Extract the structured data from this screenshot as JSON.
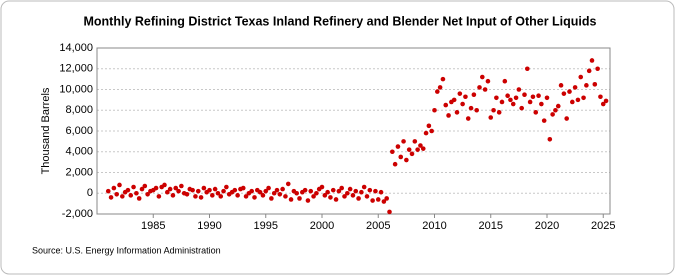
{
  "chart_data": {
    "type": "scatter",
    "title": "Monthly Refining District Texas Inland Refinery and Blender Net Input of Other Liquids",
    "y_label": "Thousand Barrels",
    "source": "Source: U.S. Energy Information Administration",
    "color": "#cc0000",
    "grid": true,
    "xlim": [
      1980,
      2025.6
    ],
    "xticks": [
      1985,
      1990,
      1995,
      2000,
      2005,
      2010,
      2015,
      2020,
      2025
    ],
    "ylim": [
      -2000,
      14000
    ],
    "yticks": [
      {
        "value": -2000,
        "label": "-2,000"
      },
      0,
      {
        "value": 2000,
        "label": "2,000"
      },
      {
        "value": 4000,
        "label": "4,000"
      },
      {
        "value": 6000,
        "label": "6,000"
      },
      {
        "value": 8000,
        "label": "8,000"
      },
      {
        "value": 10000,
        "label": "10,000"
      },
      {
        "value": 12000,
        "label": "12,000"
      },
      {
        "value": 14000,
        "label": "14,000"
      }
    ],
    "x": [
      1981,
      1981.25,
      1981.5,
      1981.75,
      1982,
      1982.25,
      1982.5,
      1982.75,
      1983,
      1983.25,
      1983.5,
      1983.75,
      1984,
      1984.25,
      1984.5,
      1984.75,
      1985,
      1985.25,
      1985.5,
      1985.75,
      1986,
      1986.25,
      1986.5,
      1986.75,
      1987,
      1987.25,
      1987.5,
      1987.75,
      1988,
      1988.25,
      1988.5,
      1988.75,
      1989,
      1989.25,
      1989.5,
      1989.75,
      1990,
      1990.25,
      1990.5,
      1990.75,
      1991,
      1991.25,
      1991.5,
      1991.75,
      1992,
      1992.25,
      1992.5,
      1992.75,
      1993,
      1993.25,
      1993.5,
      1993.75,
      1994,
      1994.25,
      1994.5,
      1994.75,
      1995,
      1995.25,
      1995.5,
      1995.75,
      1996,
      1996.25,
      1996.5,
      1996.75,
      1997,
      1997.25,
      1997.5,
      1997.75,
      1998,
      1998.25,
      1998.5,
      1998.75,
      1999,
      1999.25,
      1999.5,
      1999.75,
      2000,
      2000.25,
      2000.5,
      2000.75,
      2001,
      2001.25,
      2001.5,
      2001.75,
      2002,
      2002.25,
      2002.5,
      2002.75,
      2003,
      2003.25,
      2003.5,
      2003.75,
      2004,
      2004.25,
      2004.5,
      2004.75,
      2005,
      2005.25,
      2005.5,
      2005.75,
      2006,
      2006.25,
      2006.5,
      2006.75,
      2007,
      2007.25,
      2007.5,
      2007.75,
      2008,
      2008.25,
      2008.5,
      2008.75,
      2009,
      2009.25,
      2009.5,
      2009.75,
      2010,
      2010.25,
      2010.5,
      2010.75,
      2011,
      2011.25,
      2011.5,
      2011.75,
      2012,
      2012.25,
      2012.5,
      2012.75,
      2013,
      2013.25,
      2013.5,
      2013.75,
      2014,
      2014.25,
      2014.5,
      2014.75,
      2015,
      2015.25,
      2015.5,
      2015.75,
      2016,
      2016.25,
      2016.5,
      2016.75,
      2017,
      2017.25,
      2017.5,
      2017.75,
      2018,
      2018.25,
      2018.5,
      2018.75,
      2019,
      2019.25,
      2019.5,
      2019.75,
      2020,
      2020.25,
      2020.5,
      2020.75,
      2021,
      2021.25,
      2021.5,
      2021.75,
      2022,
      2022.25,
      2022.5,
      2022.75,
      2023,
      2023.25,
      2023.5,
      2023.75,
      2024,
      2024.25,
      2024.5,
      2024.75,
      2025,
      2025.25
    ],
    "values": [
      200,
      -400,
      500,
      -100,
      800,
      -300,
      100,
      300,
      -200,
      600,
      0,
      -500,
      400,
      700,
      -100,
      200,
      300,
      500,
      -300,
      600,
      800,
      100,
      400,
      -200,
      500,
      200,
      700,
      0,
      -100,
      400,
      300,
      -300,
      200,
      -400,
      500,
      100,
      300,
      -200,
      400,
      0,
      -300,
      200,
      600,
      -100,
      100,
      300,
      -200,
      400,
      500,
      -300,
      0,
      200,
      -400,
      300,
      100,
      -200,
      200,
      500,
      -500,
      0,
      300,
      -100,
      400,
      -300,
      900,
      -600,
      200,
      0,
      -500,
      100,
      300,
      -700,
      200,
      -300,
      0,
      400,
      600,
      -200,
      100,
      -400,
      300,
      -600,
      200,
      500,
      -300,
      0,
      400,
      -200,
      200,
      -500,
      100,
      600,
      -300,
      300,
      -700,
      200,
      -600,
      100,
      -800,
      -500,
      -1800,
      4000,
      2800,
      4500,
      3500,
      5000,
      3200,
      4200,
      3800,
      5000,
      4200,
      4600,
      4300,
      5800,
      6500,
      6000,
      8000,
      9800,
      10200,
      11000,
      8500,
      7500,
      8800,
      9000,
      7800,
      9600,
      8600,
      9300,
      7200,
      8200,
      9500,
      8000,
      10200,
      11200,
      10000,
      10800,
      7300,
      8000,
      9200,
      7800,
      8800,
      10800,
      9400,
      9000,
      8600,
      9200,
      10000,
      8200,
      9500,
      12000,
      8800,
      9300,
      7800,
      9400,
      8600,
      7000,
      9200,
      5200,
      7600,
      8000,
      8400,
      10400,
      9600,
      7200,
      9800,
      8800,
      10200,
      9000,
      11200,
      9200,
      10400,
      11800,
      12800,
      10500,
      12000,
      9300,
      8600,
      8900
    ]
  }
}
